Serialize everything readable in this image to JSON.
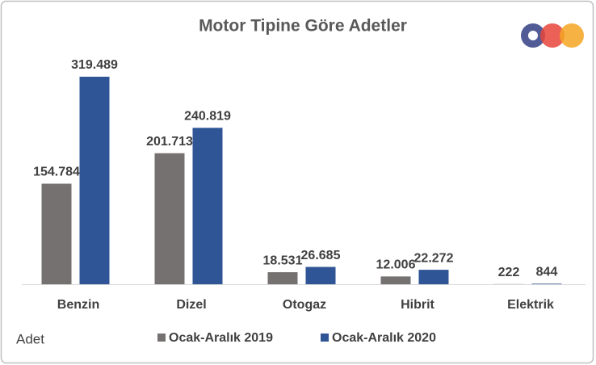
{
  "chart_data": {
    "type": "bar",
    "title": "Motor Tipine Göre Adetler",
    "y_label": "Adet",
    "categories": [
      "Benzin",
      "Dizel",
      "Otogaz",
      "Hibrit",
      "Elektrik"
    ],
    "series": [
      {
        "name": "Ocak-Aralık 2019",
        "color": "#767171",
        "values": [
          154784,
          201713,
          18531,
          12006,
          222
        ],
        "value_labels": [
          "154.784",
          "201.713",
          "18.531",
          "12.006",
          "222"
        ]
      },
      {
        "name": "Ocak-Aralık 2020",
        "color": "#2f5597",
        "values": [
          319489,
          240819,
          26685,
          22272,
          844
        ],
        "value_labels": [
          "319.489",
          "240.819",
          "26.685",
          "22.272",
          "844"
        ]
      }
    ],
    "legend": "bottom"
  }
}
